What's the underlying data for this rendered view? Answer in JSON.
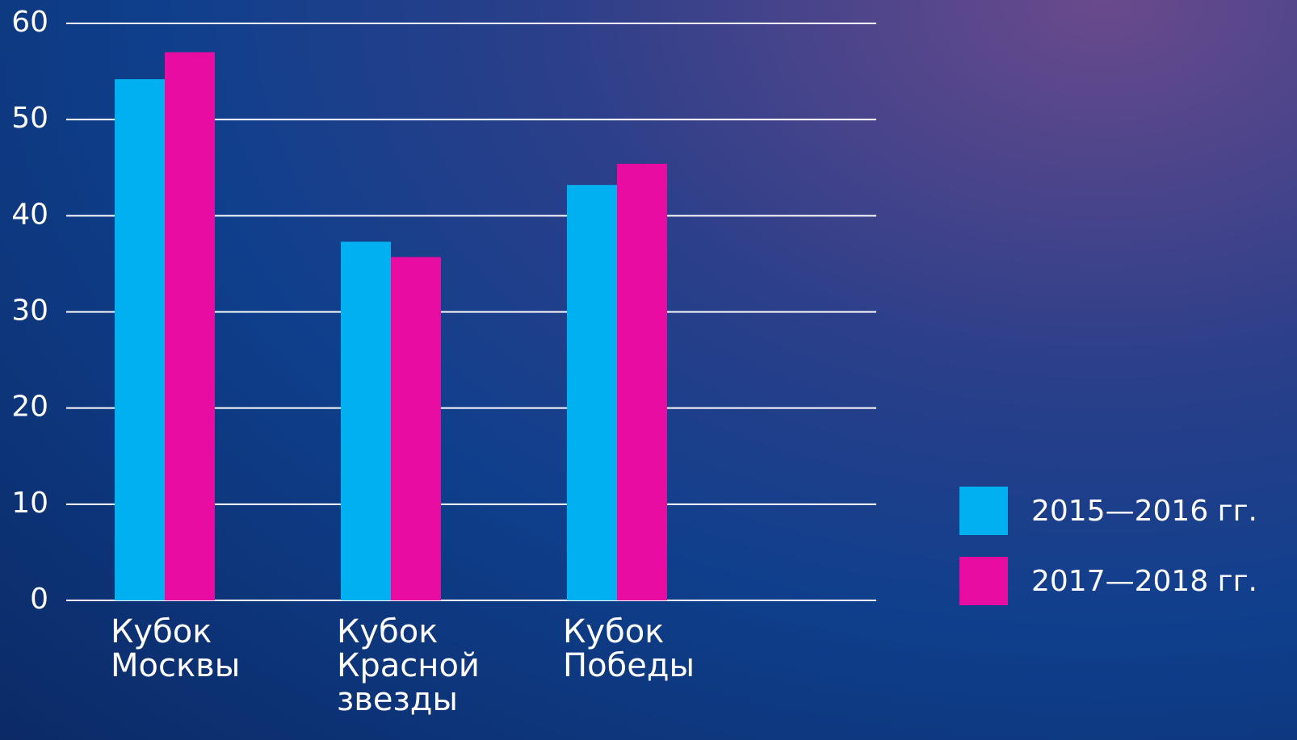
{
  "chart_data": {
    "type": "bar",
    "categories": [
      "Кубок Москвы",
      "Кубок Красной звезды",
      "Кубок Победы"
    ],
    "series": [
      {
        "name": "2015—2016 гг.",
        "color": "#00b0f0",
        "values": [
          54.2,
          37.3,
          43.2
        ]
      },
      {
        "name": "2017—2018 гг.",
        "color": "#e80ca3",
        "values": [
          57.0,
          35.7,
          45.4
        ]
      }
    ],
    "ylim": [
      0,
      60
    ],
    "yticks": [
      0,
      10,
      20,
      30,
      40,
      50,
      60
    ],
    "grid": true,
    "legend": "right"
  }
}
